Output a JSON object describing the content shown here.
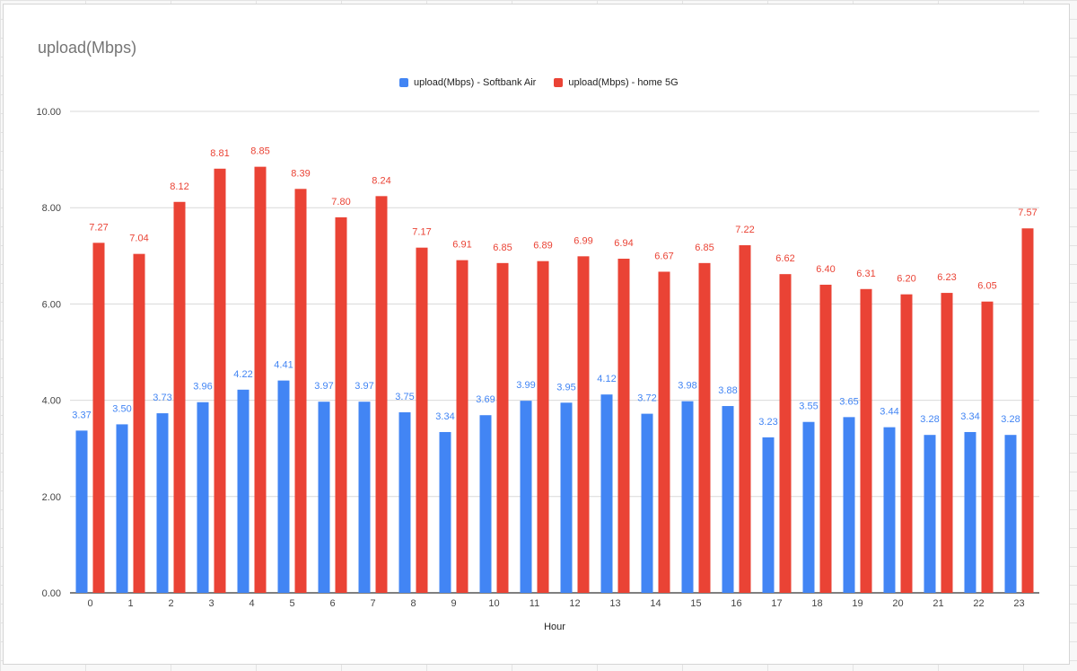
{
  "chart_data": {
    "type": "bar",
    "title": "upload(Mbps)",
    "xlabel": "Hour",
    "ylabel": "",
    "ylim": [
      0,
      10
    ],
    "yticks": [
      "0.00",
      "2.00",
      "4.00",
      "6.00",
      "8.00",
      "10.00"
    ],
    "grid": true,
    "legend_position": "top",
    "categories": [
      "0",
      "1",
      "2",
      "3",
      "4",
      "5",
      "6",
      "7",
      "8",
      "9",
      "10",
      "11",
      "12",
      "13",
      "14",
      "15",
      "16",
      "17",
      "18",
      "19",
      "20",
      "21",
      "22",
      "23"
    ],
    "series": [
      {
        "name": "upload(Mbps) - Softbank Air",
        "color": "#4285f4",
        "values": [
          3.37,
          3.5,
          3.73,
          3.96,
          4.22,
          4.41,
          3.97,
          3.97,
          3.75,
          3.34,
          3.69,
          3.99,
          3.95,
          4.12,
          3.72,
          3.98,
          3.88,
          3.23,
          3.55,
          3.65,
          3.44,
          3.28,
          3.34,
          3.28
        ],
        "labels": [
          "3.37",
          "3.50",
          "3.73",
          "3.96",
          "4.22",
          "4.41",
          "3.97",
          "3.97",
          "3.75",
          "3.34",
          "3.69",
          "3.99",
          "3.95",
          "4.12",
          "3.72",
          "3.98",
          "3.88",
          "3.23",
          "3.55",
          "3.65",
          "3.44",
          "3.28",
          "3.34",
          "3.28"
        ]
      },
      {
        "name": "upload(Mbps) - home 5G",
        "color": "#ea4335",
        "values": [
          7.27,
          7.04,
          8.12,
          8.81,
          8.85,
          8.39,
          7.8,
          8.24,
          7.17,
          6.91,
          6.85,
          6.89,
          6.99,
          6.94,
          6.67,
          6.85,
          7.22,
          6.62,
          6.4,
          6.31,
          6.2,
          6.23,
          6.05,
          7.57
        ],
        "labels": [
          "7.27",
          "7.04",
          "8.12",
          "8.81",
          "8.85",
          "8.39",
          "7.80",
          "8.24",
          "7.17",
          "6.91",
          "6.85",
          "6.89",
          "6.99",
          "6.94",
          "6.67",
          "6.85",
          "7.22",
          "6.62",
          "6.40",
          "6.31",
          "6.20",
          "6.23",
          "6.05",
          "7.57"
        ]
      }
    ]
  }
}
